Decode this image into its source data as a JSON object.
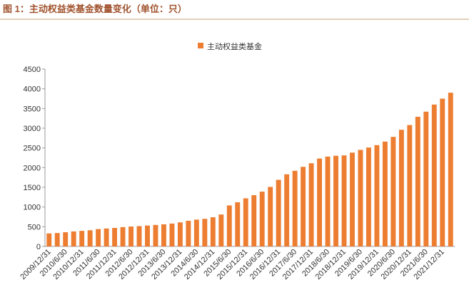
{
  "header": {
    "title": "图 1：主动权益类基金数量变化（单位：只）"
  },
  "chart_data": {
    "type": "bar",
    "categories": [
      "2009/12/31",
      null,
      "2010/6/30",
      null,
      "2010/12/31",
      null,
      "2011/6/30",
      null,
      "2011/12/31",
      null,
      "2012/6/30",
      null,
      "2012/12/31",
      null,
      "2013/6/30",
      null,
      "2013/12/31",
      null,
      "2014/6/30",
      null,
      "2014/12/31",
      null,
      "2015/6/30",
      null,
      "2015/12/31",
      null,
      "2016/6/30",
      null,
      "2016/12/31",
      null,
      "2017/6/30",
      null,
      "2017/12/31",
      null,
      "2018/6/30",
      null,
      "2018/12/31",
      null,
      "2019/6/30",
      null,
      "2019/12/31",
      null,
      "2020/6/30",
      null,
      "2020/12/31",
      null,
      "2021/6/30",
      null,
      "2021/12/31",
      null
    ],
    "series": [
      {
        "name": "主动权益类基金",
        "color": "#ed7d31",
        "values": [
          330,
          340,
          360,
          380,
          395,
          410,
          440,
          455,
          470,
          490,
          505,
          515,
          530,
          545,
          560,
          580,
          610,
          650,
          680,
          700,
          740,
          810,
          1040,
          1120,
          1220,
          1300,
          1390,
          1510,
          1690,
          1830,
          1920,
          2020,
          2110,
          2230,
          2280,
          2300,
          2310,
          2380,
          2450,
          2510,
          2570,
          2660,
          2780,
          2960,
          3080,
          3290,
          3420,
          3600,
          3750,
          3900
        ]
      }
    ],
    "ylim": [
      0,
      4500
    ],
    "yticks": [
      0,
      500,
      1000,
      1500,
      2000,
      2500,
      3000,
      3500,
      4000,
      4500
    ],
    "legend": "top",
    "grid": false
  }
}
